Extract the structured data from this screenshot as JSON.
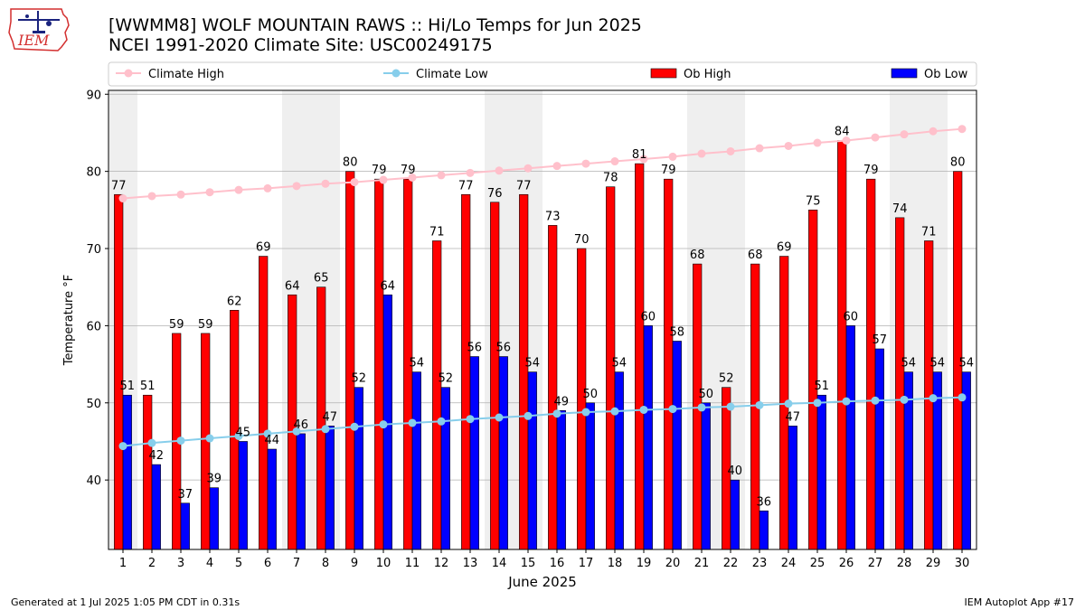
{
  "header": {
    "title_line1": "[WWMM8] WOLF MOUNTAIN RAWS :: Hi/Lo Temps for Jun 2025",
    "title_line2": "NCEI 1991-2020 Climate Site: USC00249175",
    "logo_text": "IEM"
  },
  "footer": {
    "generated": "Generated at 1 Jul 2025 1:05 PM CDT in 0.31s",
    "app": "IEM Autoplot App #17"
  },
  "chart_data": {
    "type": "bar",
    "xlabel": "June 2025",
    "ylabel": "Temperature °F",
    "ylim": [
      31,
      90.5
    ],
    "yticks": [
      40,
      50,
      60,
      70,
      80,
      90
    ],
    "categories": [
      "1",
      "2",
      "3",
      "4",
      "5",
      "6",
      "7",
      "8",
      "9",
      "10",
      "11",
      "12",
      "13",
      "14",
      "15",
      "16",
      "17",
      "18",
      "19",
      "20",
      "21",
      "22",
      "23",
      "24",
      "25",
      "26",
      "27",
      "28",
      "29",
      "30"
    ],
    "grid": true,
    "legend_placement": "top",
    "weekend_shading": [
      [
        1,
        1
      ],
      [
        7,
        8
      ],
      [
        14,
        15
      ],
      [
        21,
        22
      ],
      [
        28,
        29
      ]
    ],
    "series": [
      {
        "name": "Ob High",
        "kind": "bar",
        "color": "#ff0000",
        "values": [
          77,
          51,
          59,
          59,
          62,
          69,
          64,
          65,
          80,
          79,
          79,
          71,
          77,
          76,
          77,
          73,
          70,
          78,
          81,
          79,
          68,
          52,
          68,
          69,
          75,
          84,
          79,
          74,
          71,
          80
        ]
      },
      {
        "name": "Ob Low",
        "kind": "bar",
        "color": "#0000ff",
        "values": [
          51,
          42,
          37,
          39,
          45,
          44,
          46,
          47,
          52,
          64,
          54,
          52,
          56,
          56,
          54,
          49,
          50,
          54,
          60,
          58,
          50,
          40,
          36,
          47,
          51,
          60,
          57,
          54,
          54,
          54
        ]
      },
      {
        "name": "Climate High",
        "kind": "line",
        "color": "#ffc0cb",
        "values": [
          76.5,
          76.8,
          77.0,
          77.3,
          77.6,
          77.8,
          78.1,
          78.4,
          78.6,
          78.9,
          79.2,
          79.5,
          79.8,
          80.1,
          80.4,
          80.7,
          81.0,
          81.3,
          81.6,
          81.9,
          82.3,
          82.6,
          83.0,
          83.3,
          83.7,
          84.0,
          84.4,
          84.8,
          85.2,
          85.5
        ]
      },
      {
        "name": "Climate Low",
        "kind": "line",
        "color": "#87ceeb",
        "values": [
          44.4,
          44.8,
          45.1,
          45.4,
          45.7,
          46.0,
          46.3,
          46.6,
          46.9,
          47.2,
          47.4,
          47.6,
          47.9,
          48.1,
          48.3,
          48.6,
          48.8,
          48.9,
          49.1,
          49.2,
          49.4,
          49.5,
          49.7,
          49.9,
          50.0,
          50.2,
          50.3,
          50.4,
          50.6,
          50.7
        ]
      }
    ]
  },
  "colors": {
    "weekend_band": "#efefef",
    "grid": "#b0b0b0",
    "logo_red": "#d32f2f",
    "logo_blue": "#1a237e"
  }
}
